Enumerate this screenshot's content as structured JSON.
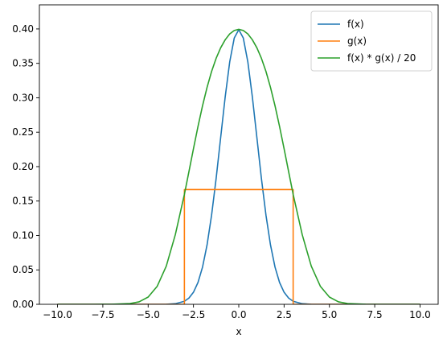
{
  "chart_data": {
    "type": "line",
    "title": "",
    "xlabel": "x",
    "ylabel": "",
    "xlim": [
      -11.0,
      11.0
    ],
    "ylim": [
      0.0,
      0.435
    ],
    "xticks": [
      -10.0,
      -7.5,
      -5.0,
      -2.5,
      0.0,
      2.5,
      5.0,
      7.5,
      10.0
    ],
    "xtick_labels": [
      "−10.0",
      "−7.5",
      "−5.0",
      "−2.5",
      "0.0",
      "2.5",
      "5.0",
      "7.5",
      "10.0"
    ],
    "yticks": [
      0.0,
      0.05,
      0.1,
      0.15,
      0.2,
      0.25,
      0.3,
      0.35,
      0.4
    ],
    "ytick_labels": [
      "0.00",
      "0.05",
      "0.10",
      "0.15",
      "0.20",
      "0.25",
      "0.30",
      "0.35",
      "0.40"
    ],
    "grid": false,
    "legend": "top-right",
    "x": [
      -10,
      -9,
      -8,
      -7,
      -6,
      -5.5,
      -5,
      -4.5,
      -4,
      -3.5,
      -3,
      -2.75,
      -2.5,
      -2.25,
      -2,
      -1.75,
      -1.5,
      -1.25,
      -1,
      -0.75,
      -0.5,
      -0.25,
      0,
      0.25,
      0.5,
      0.75,
      1,
      1.25,
      1.5,
      1.75,
      2,
      2.25,
      2.5,
      2.75,
      3,
      3.5,
      4,
      4.5,
      5,
      5.5,
      6,
      7,
      8,
      9,
      10
    ],
    "series": [
      {
        "name": "f(x)",
        "color": "#1f77b4",
        "values": [
          0,
          0,
          0,
          0,
          0,
          0,
          0,
          0,
          0.0001,
          0.0009,
          0.0044,
          0.0091,
          0.0175,
          0.0317,
          0.054,
          0.0863,
          0.1295,
          0.1826,
          0.242,
          0.3011,
          0.3521,
          0.3867,
          0.3989,
          0.3867,
          0.3521,
          0.3011,
          0.242,
          0.1826,
          0.1295,
          0.0863,
          0.054,
          0.0317,
          0.0175,
          0.0091,
          0.0044,
          0.0009,
          0.0001,
          0,
          0,
          0,
          0,
          0,
          0,
          0,
          0
        ]
      },
      {
        "name": "g(x)",
        "color": "#ff7f0e",
        "x": [
          -10,
          -3,
          -3,
          3,
          3,
          10
        ],
        "values": [
          0,
          0,
          0.1667,
          0.1667,
          0,
          0
        ]
      },
      {
        "name": "f(x) * g(x) / 20",
        "color": "#2ca02c",
        "values": [
          0,
          0,
          0,
          0.0001,
          0.0011,
          0.0036,
          0.0105,
          0.0262,
          0.0555,
          0.1012,
          0.1597,
          0.1927,
          0.226,
          0.2583,
          0.2883,
          0.3151,
          0.3382,
          0.3573,
          0.3725,
          0.3842,
          0.3927,
          0.3977,
          0.3994,
          0.3977,
          0.3927,
          0.3842,
          0.3725,
          0.3573,
          0.3382,
          0.3151,
          0.2883,
          0.2583,
          0.226,
          0.1927,
          0.1597,
          0.1012,
          0.0555,
          0.0262,
          0.0105,
          0.0036,
          0.0011,
          0.0001,
          0,
          0,
          0
        ]
      }
    ]
  }
}
